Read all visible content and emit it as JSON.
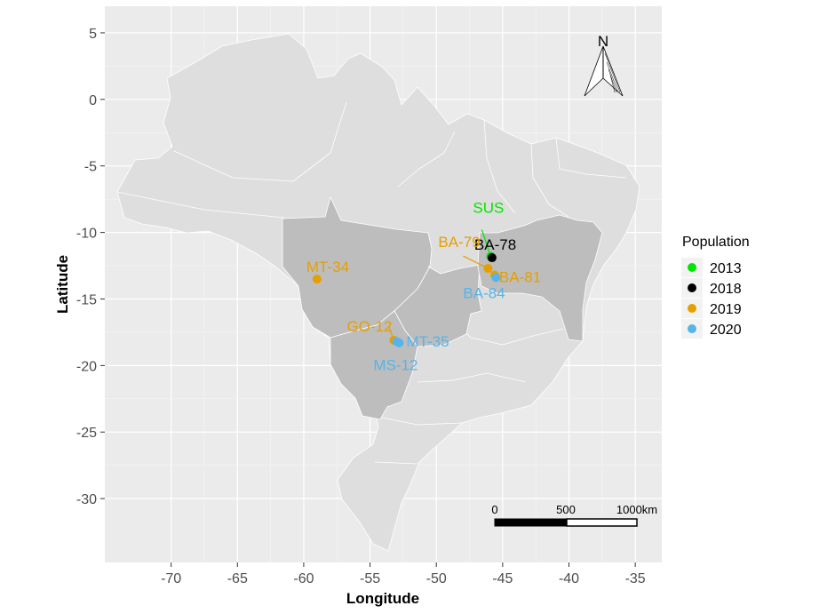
{
  "map": {
    "x_axis": {
      "title": "Longitude",
      "range": [
        -75,
        -33
      ],
      "ticks": [
        -70,
        -65,
        -60,
        -55,
        -50,
        -45,
        -40,
        -35
      ],
      "tick_labels": [
        "-70",
        "-65",
        "-60",
        "-55",
        "-50",
        "-45",
        "-40",
        "-35"
      ]
    },
    "y_axis": {
      "title": "Latitude",
      "range": [
        -34.8,
        7
      ],
      "ticks": [
        5,
        0,
        -5,
        -10,
        -15,
        -20,
        -25,
        -30
      ],
      "tick_labels": [
        "5",
        "0",
        "-5",
        "-10",
        "-15",
        "-20",
        "-25",
        "-30"
      ]
    },
    "north_arrow": {
      "label": "N"
    },
    "scale_bar": {
      "labels": [
        "0",
        "500",
        "1000km"
      ]
    },
    "legend": {
      "title": "Population",
      "items": [
        {
          "label": "2013",
          "color": "#00e600"
        },
        {
          "label": "2018",
          "color": "#000000"
        },
        {
          "label": "2019",
          "color": "#e69f00"
        },
        {
          "label": "2020",
          "color": "#56b4e9"
        }
      ]
    },
    "points": [
      {
        "label": "SUS",
        "year": "2013",
        "lon": -45.9,
        "lat": -11.8,
        "color": "#00e600"
      },
      {
        "label": "BA-78",
        "year": "2018",
        "lon": -45.8,
        "lat": -11.9,
        "color": "#000000"
      },
      {
        "label": "BA-79",
        "year": "2019",
        "lon": -46.1,
        "lat": -12.7,
        "color": "#e69f00"
      },
      {
        "label": "BA-81",
        "year": "2019",
        "lon": -45.6,
        "lat": -13.2,
        "color": "#e69f00"
      },
      {
        "label": "BA-84",
        "year": "2020",
        "lon": -45.5,
        "lat": -13.4,
        "color": "#56b4e9"
      },
      {
        "label": "MT-34",
        "year": "2019",
        "lon": -59.0,
        "lat": -13.5,
        "color": "#e69f00"
      },
      {
        "label": "GO-12",
        "year": "2019",
        "lon": -53.2,
        "lat": -18.1,
        "color": "#e69f00"
      },
      {
        "label": "MT-35",
        "year": "2020",
        "lon": -52.8,
        "lat": -18.3,
        "color": "#56b4e9"
      },
      {
        "label": "MS-12",
        "year": "2020",
        "lon": -53.0,
        "lat": -18.2,
        "color": "#56b4e9"
      }
    ]
  }
}
